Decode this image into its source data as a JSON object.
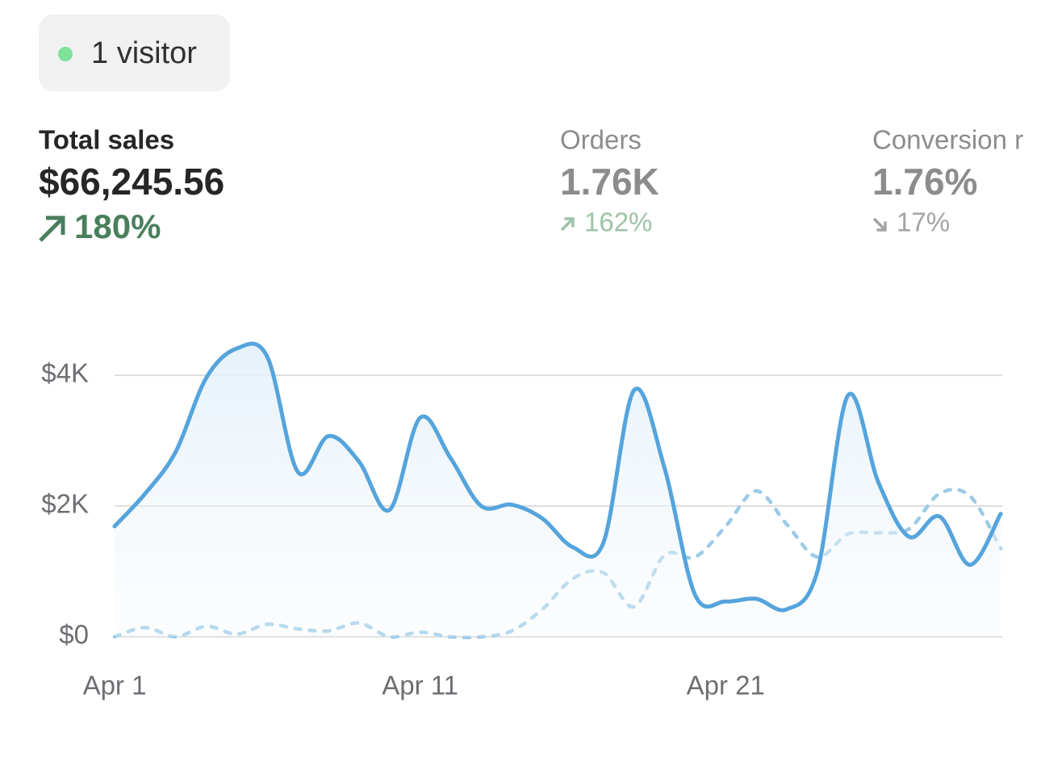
{
  "badge": {
    "label": "1 visitor"
  },
  "metrics": [
    {
      "label": "Total sales",
      "value": "$66,245.56",
      "change": "180%",
      "direction": "up"
    },
    {
      "label": "Orders",
      "value": "1.76K",
      "change": "162%",
      "direction": "up"
    },
    {
      "label": "Conversion r",
      "value": "1.76%",
      "change": "17%",
      "direction": "down"
    }
  ],
  "chart_data": {
    "type": "line",
    "categories": [
      "Apr 1",
      null,
      null,
      null,
      null,
      null,
      null,
      null,
      null,
      null,
      "Apr 11",
      null,
      null,
      null,
      null,
      null,
      null,
      null,
      null,
      null,
      "Apr 21",
      null,
      null,
      null,
      null,
      null,
      null,
      null,
      null,
      null
    ],
    "series": [
      {
        "color": "#55a4dc",
        "area": true,
        "dashed": false,
        "values": [
          1690,
          2190,
          2830,
          3960,
          4410,
          4280,
          2520,
          3070,
          2680,
          1940,
          3350,
          2730,
          2000,
          2020,
          1810,
          1370,
          1440,
          3770,
          2580,
          640,
          540,
          580,
          420,
          1000,
          3690,
          2360,
          1530,
          1840,
          1100,
          1880
        ]
      },
      {
        "color": "#9ccbe8",
        "area": false,
        "dashed": true,
        "values": [
          0,
          140,
          0,
          160,
          40,
          190,
          120,
          90,
          210,
          0,
          70,
          0,
          0,
          90,
          420,
          890,
          980,
          460,
          1250,
          1220,
          1690,
          2230,
          1720,
          1220,
          1570,
          1590,
          1650,
          2190,
          2150,
          1350
        ]
      }
    ],
    "ylim": [
      0,
      4500
    ],
    "yticks": [
      {
        "value": 0,
        "label": "$0"
      },
      {
        "value": 2000,
        "label": "$2K"
      },
      {
        "value": 4000,
        "label": "$4K"
      }
    ],
    "grid": true
  }
}
